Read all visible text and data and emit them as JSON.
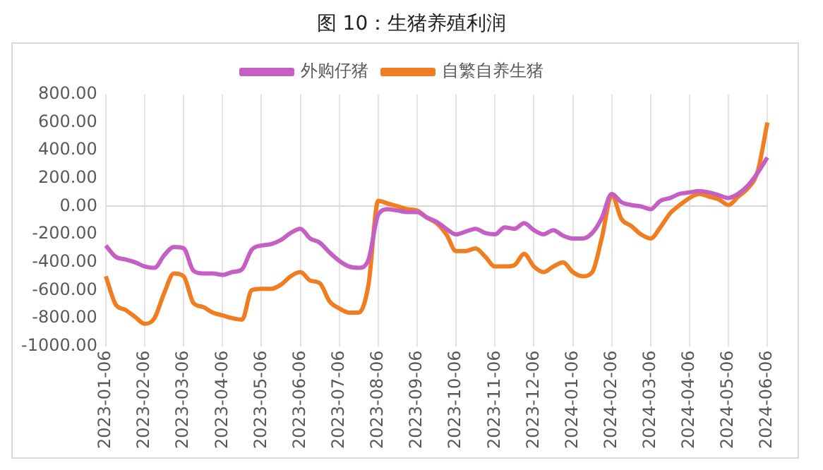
{
  "chart_data": {
    "type": "line",
    "title": "图 10：生猪养殖利润",
    "categories": [
      "2023-01-06",
      null,
      null,
      null,
      "2023-02-06",
      null,
      null,
      null,
      "2023-03-06",
      null,
      null,
      null,
      "2023-04-06",
      null,
      null,
      null,
      "2023-05-06",
      null,
      null,
      null,
      "2023-06-06",
      null,
      null,
      null,
      "2023-07-06",
      null,
      null,
      null,
      "2023-08-06",
      null,
      null,
      null,
      "2023-09-06",
      null,
      null,
      null,
      "2023-10-06",
      null,
      null,
      null,
      "2023-11-06",
      null,
      null,
      null,
      "2023-12-06",
      null,
      null,
      null,
      "2024-01-06",
      null,
      null,
      null,
      "2024-02-06",
      null,
      null,
      null,
      "2024-03-06",
      null,
      null,
      null,
      "2024-04-06",
      null,
      null,
      null,
      "2024-05-06",
      null,
      null,
      null,
      "2024-06-06"
    ],
    "series": [
      {
        "name": "外购仔猪",
        "color": "#c65fc4",
        "values": [
          -280,
          -360,
          -380,
          -400,
          -430,
          -440,
          -350,
          -290,
          -300,
          -460,
          -480,
          -480,
          -490,
          -470,
          -450,
          -310,
          -280,
          -270,
          -240,
          -190,
          -160,
          -230,
          -260,
          -330,
          -390,
          -430,
          -440,
          -380,
          -60,
          -20,
          -30,
          -40,
          -40,
          -80,
          -110,
          -160,
          -200,
          -180,
          -160,
          -190,
          -200,
          -150,
          -160,
          -120,
          -170,
          -200,
          -170,
          -210,
          -230,
          -230,
          -190,
          -80,
          90,
          30,
          10,
          0,
          -20,
          40,
          60,
          90,
          100,
          110,
          100,
          80,
          60,
          90,
          150,
          240,
          350
        ]
      },
      {
        "name": "自繁自养生猪",
        "color": "#f07d1f",
        "values": [
          -500,
          -700,
          -740,
          -790,
          -840,
          -800,
          -620,
          -480,
          -500,
          -690,
          -720,
          -760,
          -780,
          -800,
          -810,
          -600,
          -590,
          -590,
          -560,
          -500,
          -470,
          -530,
          -550,
          -680,
          -730,
          -760,
          -760,
          -560,
          40,
          20,
          0,
          -20,
          -30,
          -80,
          -120,
          -200,
          -320,
          -320,
          -300,
          -360,
          -430,
          -430,
          -420,
          -340,
          -430,
          -470,
          -430,
          -400,
          -470,
          -500,
          -470,
          -220,
          80,
          -90,
          -140,
          -200,
          -230,
          -150,
          -50,
          10,
          60,
          90,
          70,
          50,
          10,
          70,
          130,
          250,
          600
        ]
      }
    ],
    "ylim": [
      -1000,
      800
    ],
    "yticks": [
      {
        "value": -1000,
        "label": "-1000.00"
      },
      {
        "value": -800,
        "label": "-800.00"
      },
      {
        "value": -600,
        "label": "-600.00"
      },
      {
        "value": -400,
        "label": "-400.00"
      },
      {
        "value": -200,
        "label": "-200.00"
      },
      {
        "value": 0,
        "label": "0.00"
      },
      {
        "value": 200,
        "label": "200.00"
      },
      {
        "value": 400,
        "label": "400.00"
      },
      {
        "value": 600,
        "label": "600.00"
      },
      {
        "value": 800,
        "label": "800.00"
      }
    ],
    "grid": "x",
    "legend": "top",
    "marker": "none",
    "line_style": "solid"
  }
}
